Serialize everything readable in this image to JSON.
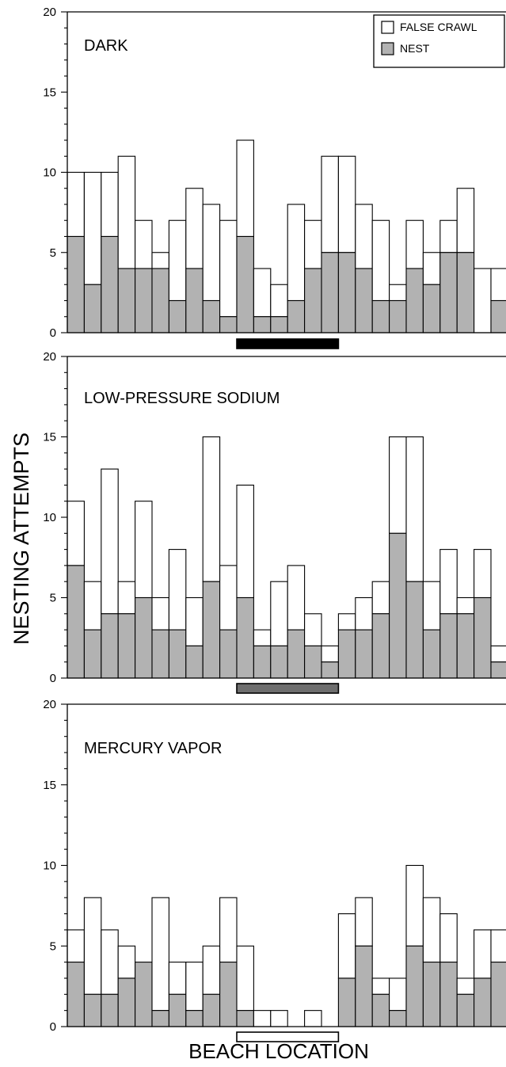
{
  "y_axis_label": "NESTING ATTEMPTS",
  "x_axis_label": "BEACH LOCATION",
  "legend": {
    "false_crawl": "FALSE CRAWL",
    "nest": "NEST"
  },
  "colors": {
    "false_crawl_fill": "#ffffff",
    "nest_fill": "#b2b2b2",
    "dark_bar": "#000000",
    "lps_bar": "#6e6e6e",
    "mv_bar": "#ffffff"
  },
  "chart_data": [
    {
      "type": "bar",
      "stacked": true,
      "title": "DARK",
      "ylim": [
        0,
        20
      ],
      "yticks": [
        0,
        5,
        10,
        15,
        20
      ],
      "series": [
        {
          "name": "NEST",
          "values": [
            6,
            3,
            6,
            4,
            4,
            4,
            2,
            4,
            2,
            1,
            6,
            1,
            1,
            2,
            4,
            5,
            5,
            4,
            2,
            2,
            4,
            3,
            5,
            5,
            0,
            2
          ]
        },
        {
          "name": "FALSE CRAWL",
          "values": [
            4,
            7,
            4,
            7,
            3,
            1,
            5,
            5,
            6,
            6,
            6,
            3,
            2,
            6,
            3,
            6,
            6,
            4,
            5,
            1,
            3,
            2,
            2,
            4,
            4,
            2
          ]
        }
      ],
      "totals": [
        10,
        10,
        10,
        11,
        7,
        5,
        7,
        9,
        8,
        7,
        12,
        4,
        3,
        8,
        7,
        11,
        11,
        8,
        7,
        3,
        7,
        5,
        7,
        9,
        4,
        4
      ],
      "light_zone": {
        "start_bar": 10,
        "end_bar": 15,
        "color": "dark_bar"
      }
    },
    {
      "type": "bar",
      "stacked": true,
      "title": "LOW-PRESSURE SODIUM",
      "ylim": [
        0,
        20
      ],
      "yticks": [
        0,
        5,
        10,
        15,
        20
      ],
      "series": [
        {
          "name": "NEST",
          "values": [
            7,
            3,
            4,
            4,
            5,
            3,
            3,
            2,
            6,
            3,
            5,
            2,
            2,
            3,
            2,
            1,
            3,
            3,
            4,
            9,
            6,
            3,
            4,
            4,
            5,
            1
          ]
        },
        {
          "name": "FALSE CRAWL",
          "values": [
            4,
            3,
            9,
            2,
            6,
            2,
            5,
            3,
            9,
            4,
            7,
            1,
            4,
            4,
            2,
            1,
            1,
            2,
            2,
            6,
            9,
            3,
            4,
            1,
            3,
            1
          ]
        }
      ],
      "totals": [
        11,
        6,
        13,
        6,
        11,
        5,
        8,
        5,
        15,
        7,
        12,
        3,
        6,
        7,
        4,
        2,
        4,
        5,
        6,
        15,
        15,
        6,
        8,
        5,
        8,
        2
      ],
      "light_zone": {
        "start_bar": 10,
        "end_bar": 15,
        "color": "lps_bar"
      }
    },
    {
      "type": "bar",
      "stacked": true,
      "title": "MERCURY VAPOR",
      "ylim": [
        0,
        20
      ],
      "yticks": [
        0,
        5,
        10,
        15,
        20
      ],
      "series": [
        {
          "name": "NEST",
          "values": [
            4,
            2,
            2,
            3,
            4,
            1,
            2,
            1,
            2,
            4,
            1,
            0,
            0,
            0,
            0,
            0,
            3,
            5,
            2,
            1,
            5,
            4,
            4,
            2,
            3,
            4
          ]
        },
        {
          "name": "FALSE CRAWL",
          "values": [
            2,
            6,
            4,
            2,
            0,
            7,
            2,
            3,
            3,
            4,
            4,
            1,
            1,
            0,
            1,
            0,
            4,
            3,
            1,
            2,
            5,
            4,
            3,
            1,
            3,
            2
          ]
        }
      ],
      "totals": [
        6,
        8,
        6,
        5,
        4,
        8,
        4,
        4,
        5,
        8,
        5,
        1,
        1,
        0,
        1,
        0,
        7,
        8,
        3,
        3,
        10,
        8,
        7,
        3,
        6,
        6
      ],
      "light_zone": {
        "start_bar": 10,
        "end_bar": 15,
        "color": "mv_bar"
      }
    }
  ]
}
